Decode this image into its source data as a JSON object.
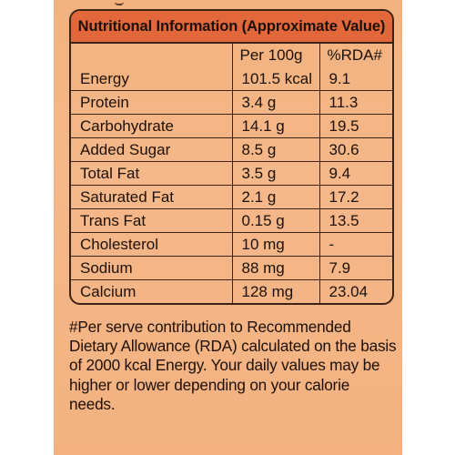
{
  "title": "Nutritional Information (Approximate Value)",
  "columns": [
    "",
    "Per 100g",
    "%RDA#"
  ],
  "rows": [
    {
      "nutrient": "Energy",
      "per100g": "101.5 kcal",
      "rda": "9.1"
    },
    {
      "nutrient": "Protein",
      "per100g": "3.4 g",
      "rda": "11.3"
    },
    {
      "nutrient": "Carbohydrate",
      "per100g": "14.1 g",
      "rda": "19.5"
    },
    {
      "nutrient": "Added Sugar",
      "per100g": "8.5 g",
      "rda": "30.6"
    },
    {
      "nutrient": "Total Fat",
      "per100g": "3.5 g",
      "rda": "9.4"
    },
    {
      "nutrient": "Saturated Fat",
      "per100g": "2.1 g",
      "rda": "17.2"
    },
    {
      "nutrient": "Trans Fat",
      "per100g": "0.15 g",
      "rda": "13.5"
    },
    {
      "nutrient": "Cholesterol",
      "per100g": "10 mg",
      "rda": "-"
    },
    {
      "nutrient": "Sodium",
      "per100g": "88 mg",
      "rda": "7.9"
    },
    {
      "nutrient": "Calcium",
      "per100g": "128 mg",
      "rda": "23.04"
    }
  ],
  "footnote": "#Per serve contribution to Recommended Dietary Allowance (RDA) calculated on the basis of 2000 kcal Energy. Your daily values may be higher or lower depending on your calorie needs.",
  "colors": {
    "panel": "#f5b88a",
    "header": "#e2673b",
    "border": "#3b2417"
  }
}
